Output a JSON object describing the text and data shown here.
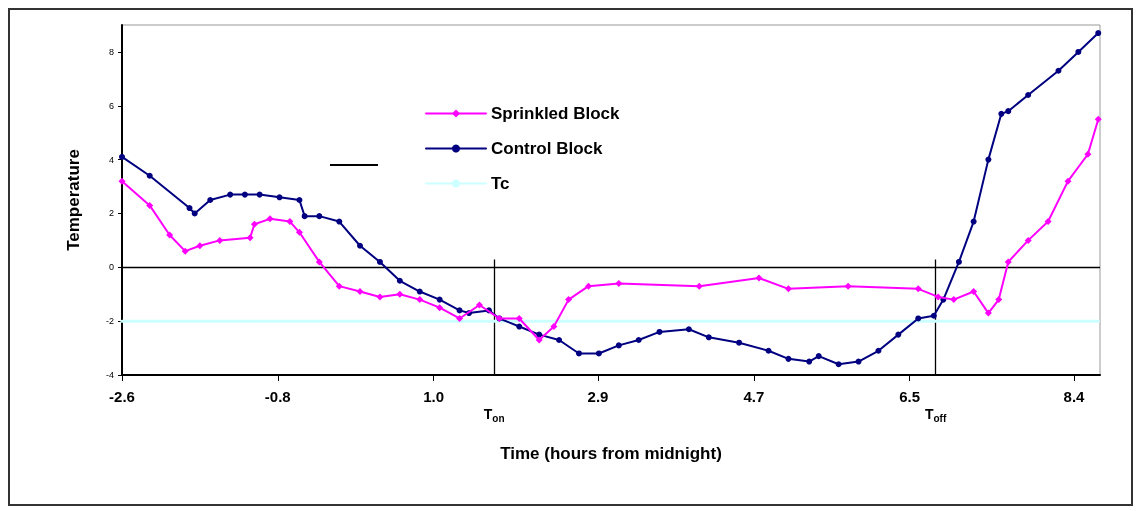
{
  "chart_data": {
    "type": "line",
    "xlabel": "Time (hours from midnight)",
    "ylabel": "Temperature",
    "xlim": [
      -2.6,
      8.7
    ],
    "xticks": [
      -2.6,
      -0.8,
      {
        "value": 1,
        "label": "1.0"
      },
      2.9,
      4.7,
      6.5,
      8.4
    ],
    "ylim": [
      -4,
      9
    ],
    "yticks": [
      -4,
      -2,
      0,
      2,
      4,
      6,
      8
    ],
    "grid": false,
    "legend": "top center",
    "line_style": "solid",
    "series": [
      {
        "name": "Sprinkled Block",
        "color": "#ff00ff",
        "marker": "diamond",
        "x": [
          -2.6,
          -2.28,
          -2.05,
          -1.87,
          -1.7,
          -1.47,
          -1.12,
          -1.07,
          -0.89,
          -0.66,
          -0.55,
          -0.32,
          -0.09,
          0.15,
          0.38,
          0.61,
          0.84,
          1.07,
          1.3,
          1.53,
          1.76,
          1.99,
          2.22,
          2.39,
          2.56,
          2.79,
          3.14,
          4.07,
          4.76,
          5.1,
          5.79,
          6.6,
          6.83,
          7.01,
          7.24,
          7.41,
          7.53,
          7.64,
          7.87,
          8.1,
          8.33,
          8.56,
          8.68
        ],
        "values": [
          3.2,
          2.3,
          1.2,
          0.6,
          0.8,
          1.0,
          1.1,
          1.6,
          1.8,
          1.7,
          1.3,
          0.2,
          -0.7,
          -0.9,
          -1.1,
          -1.0,
          -1.2,
          -1.5,
          -1.9,
          -1.4,
          -1.9,
          -1.9,
          -2.7,
          -2.2,
          -1.2,
          -0.7,
          -0.6,
          -0.7,
          -0.4,
          -0.8,
          -0.7,
          -0.8,
          -1.1,
          -1.2,
          -0.9,
          -1.7,
          -1.2,
          0.2,
          1.0,
          1.7,
          3.2,
          4.2,
          5.5
        ]
      },
      {
        "name": "Control Block",
        "color": "#000080",
        "marker": "circle",
        "x": [
          -2.6,
          -2.28,
          -1.82,
          -1.76,
          -1.58,
          -1.35,
          -1.18,
          -1.01,
          -0.78,
          -0.55,
          -0.49,
          -0.32,
          -0.09,
          0.15,
          0.38,
          0.61,
          0.84,
          1.07,
          1.3,
          1.41,
          1.64,
          1.76,
          1.99,
          2.22,
          2.45,
          2.68,
          2.91,
          3.14,
          3.37,
          3.61,
          3.95,
          4.18,
          4.53,
          4.87,
          5.1,
          5.34,
          5.45,
          5.68,
          5.91,
          6.14,
          6.37,
          6.6,
          6.78,
          6.89,
          7.07,
          7.24,
          7.41,
          7.56,
          7.64,
          7.87,
          8.22,
          8.45,
          8.68
        ],
        "values": [
          4.1,
          3.4,
          2.2,
          2.0,
          2.5,
          2.7,
          2.7,
          2.7,
          2.6,
          2.5,
          1.9,
          1.9,
          1.7,
          0.8,
          0.2,
          -0.5,
          -0.9,
          -1.2,
          -1.6,
          -1.7,
          -1.6,
          -1.9,
          -2.2,
          -2.5,
          -2.7,
          -3.2,
          -3.2,
          -2.9,
          -2.7,
          -2.4,
          -2.3,
          -2.6,
          -2.8,
          -3.1,
          -3.4,
          -3.5,
          -3.3,
          -3.6,
          -3.5,
          -3.1,
          -2.5,
          -1.9,
          -1.8,
          -1.2,
          0.2,
          1.7,
          4.0,
          5.7,
          5.8,
          6.4,
          7.3,
          8.0,
          8.7
        ]
      },
      {
        "name": "Tc",
        "color": "#ccffff",
        "marker": "none",
        "x": [
          -2.6,
          8.68
        ],
        "values": [
          -2,
          -2
        ]
      }
    ],
    "ref_lines": [
      {
        "axis": "y",
        "value": 0,
        "color": "#000000"
      },
      {
        "axis": "x",
        "value": 1.7,
        "label": "T$_{on}$",
        "color": "#000000"
      },
      {
        "axis": "x",
        "value": 6.8,
        "label": "T$_{off}$",
        "color": "#000000"
      }
    ]
  }
}
